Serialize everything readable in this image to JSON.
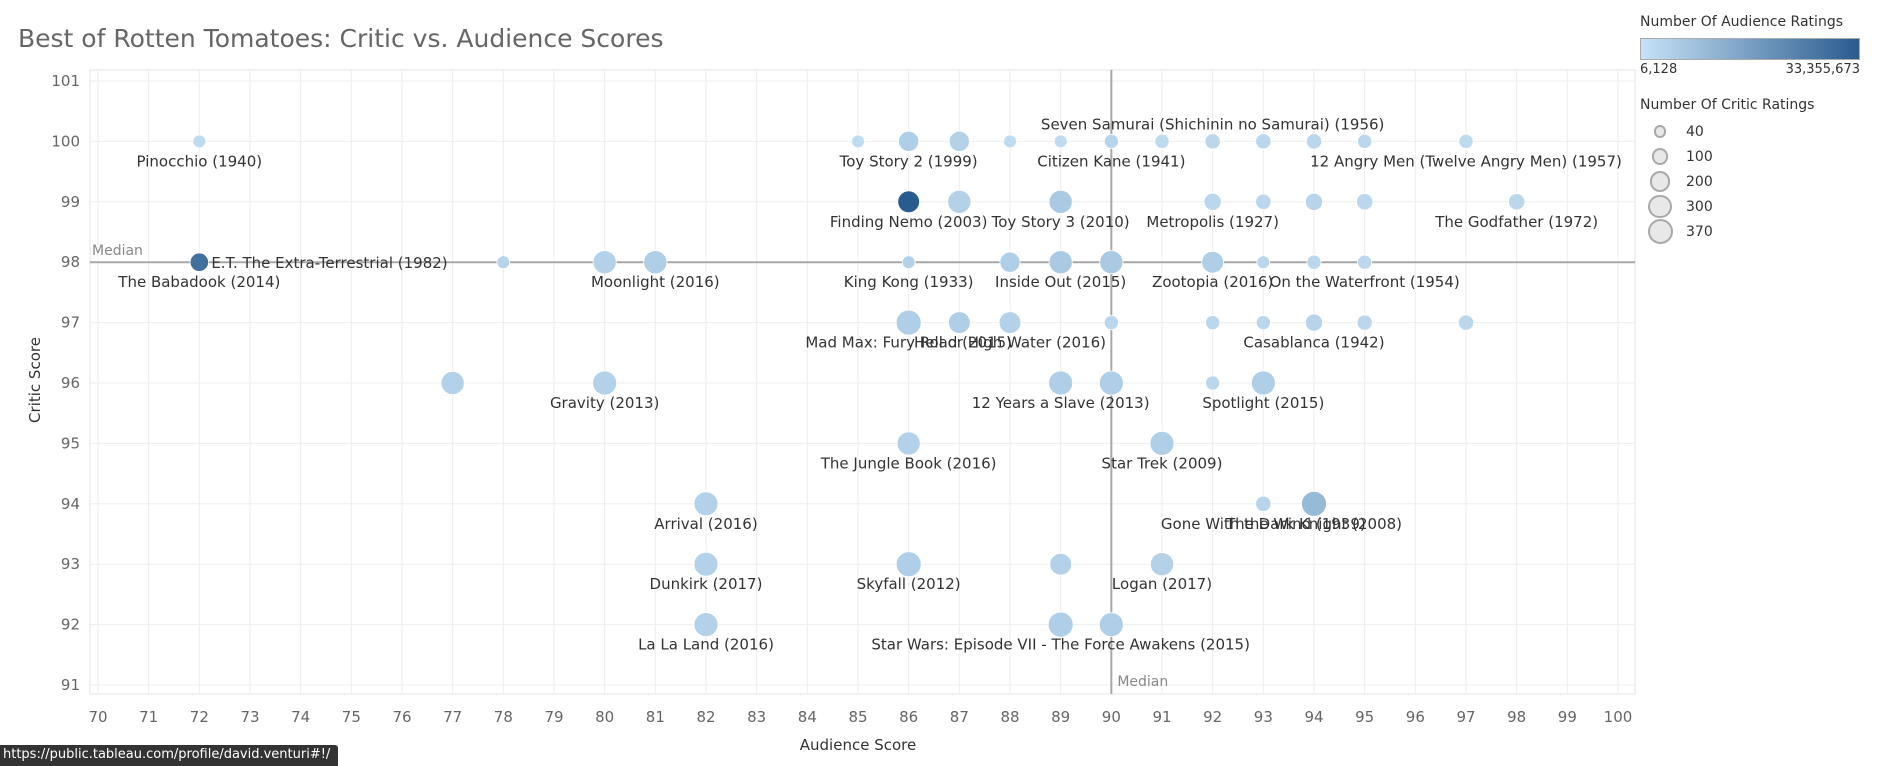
{
  "chart_data": {
    "type": "scatter",
    "title": "Best of Rotten Tomatoes: Critic vs. Audience Scores",
    "xlabel": "Audience Score",
    "ylabel": "Critic Score",
    "xlim": [
      70,
      100
    ],
    "ylim": [
      91,
      101
    ],
    "x_ticks": [
      70,
      71,
      72,
      73,
      74,
      75,
      76,
      77,
      78,
      79,
      80,
      81,
      82,
      83,
      84,
      85,
      86,
      87,
      88,
      89,
      90,
      91,
      92,
      93,
      94,
      95,
      96,
      97,
      98,
      99,
      100
    ],
    "y_ticks": [
      91,
      92,
      93,
      94,
      95,
      96,
      97,
      98,
      99,
      100,
      101
    ],
    "grid": true,
    "reference_lines": [
      {
        "axis": "x",
        "value": 90,
        "label": "Median"
      },
      {
        "axis": "y",
        "value": 98,
        "label": "Median"
      }
    ],
    "color_legend": {
      "title": "Number Of Audience Ratings",
      "min_label": "6,128",
      "max_label": "33,355,673",
      "min_color": "#c6e2f6",
      "max_color": "#2a5b8f"
    },
    "size_legend": {
      "title": "Number Of Critic Ratings",
      "values": [
        "40",
        "100",
        "200",
        "300",
        "370"
      ]
    },
    "points": [
      {
        "x": 72,
        "y": 100,
        "size": 40,
        "color": 0.05,
        "label": "Pinocchio (1940)"
      },
      {
        "x": 85,
        "y": 100,
        "size": 40,
        "color": 0.05,
        "label": ""
      },
      {
        "x": 86,
        "y": 100,
        "size": 200,
        "color": 0.15,
        "label": "Toy Story 2 (1999)"
      },
      {
        "x": 87,
        "y": 100,
        "size": 200,
        "color": 0.12,
        "label": ""
      },
      {
        "x": 88,
        "y": 100,
        "size": 40,
        "color": 0.05,
        "label": ""
      },
      {
        "x": 89,
        "y": 100,
        "size": 40,
        "color": 0.05,
        "label": ""
      },
      {
        "x": 90,
        "y": 100,
        "size": 60,
        "color": 0.1,
        "label": "Citizen Kane (1941)"
      },
      {
        "x": 91,
        "y": 100,
        "size": 60,
        "color": 0.05,
        "label": ""
      },
      {
        "x": 92,
        "y": 100,
        "size": 80,
        "color": 0.08,
        "label": ""
      },
      {
        "x": 93,
        "y": 100,
        "size": 80,
        "color": 0.08,
        "label": ""
      },
      {
        "x": 94,
        "y": 100,
        "size": 80,
        "color": 0.08,
        "label": ""
      },
      {
        "x": 95,
        "y": 100,
        "size": 60,
        "color": 0.08,
        "label": ""
      },
      {
        "x": 97,
        "y": 100,
        "size": 60,
        "color": 0.05,
        "label": ""
      },
      {
        "x": 86,
        "y": 99,
        "size": 250,
        "color": 1.0,
        "label": "Finding Nemo (2003)"
      },
      {
        "x": 87,
        "y": 99,
        "size": 300,
        "color": 0.12,
        "label": ""
      },
      {
        "x": 89,
        "y": 99,
        "size": 300,
        "color": 0.18,
        "label": "Toy Story 3 (2010)"
      },
      {
        "x": 92,
        "y": 99,
        "size": 120,
        "color": 0.08,
        "label": "Metropolis (1927)"
      },
      {
        "x": 93,
        "y": 99,
        "size": 80,
        "color": 0.08,
        "label": ""
      },
      {
        "x": 94,
        "y": 99,
        "size": 120,
        "color": 0.1,
        "label": ""
      },
      {
        "x": 95,
        "y": 99,
        "size": 100,
        "color": 0.08,
        "label": ""
      },
      {
        "x": 98,
        "y": 99,
        "size": 100,
        "color": 0.08,
        "label": "The Godfather (1972)"
      },
      {
        "x": 72,
        "y": 98,
        "size": 150,
        "color": 0.85,
        "label": "The Babadook (2014)"
      },
      {
        "x": 78,
        "y": 98,
        "size": 40,
        "color": 0.1,
        "label": ""
      },
      {
        "x": 80,
        "y": 98,
        "size": 300,
        "color": 0.12,
        "label": ""
      },
      {
        "x": 81,
        "y": 98,
        "size": 300,
        "color": 0.15,
        "label": "Moonlight (2016)"
      },
      {
        "x": 86,
        "y": 98,
        "size": 40,
        "color": 0.12,
        "label": "King Kong (1933)"
      },
      {
        "x": 88,
        "y": 98,
        "size": 200,
        "color": 0.15,
        "label": ""
      },
      {
        "x": 89,
        "y": 98,
        "size": 300,
        "color": 0.18,
        "label": "Inside Out (2015)"
      },
      {
        "x": 90,
        "y": 98,
        "size": 300,
        "color": 0.18,
        "label": ""
      },
      {
        "x": 92,
        "y": 98,
        "size": 250,
        "color": 0.15,
        "label": "Zootopia (2016)"
      },
      {
        "x": 93,
        "y": 98,
        "size": 40,
        "color": 0.08,
        "label": ""
      },
      {
        "x": 94,
        "y": 98,
        "size": 60,
        "color": 0.08,
        "label": ""
      },
      {
        "x": 95,
        "y": 98,
        "size": 60,
        "color": 0.08,
        "label": "On the Waterfront (1954)"
      },
      {
        "x": 86,
        "y": 97,
        "size": 370,
        "color": 0.15,
        "label": "Mad Max: Fury Road (2015)"
      },
      {
        "x": 87,
        "y": 97,
        "size": 250,
        "color": 0.15,
        "label": ""
      },
      {
        "x": 88,
        "y": 97,
        "size": 250,
        "color": 0.12,
        "label": "Hell or High Water (2016)"
      },
      {
        "x": 90,
        "y": 97,
        "size": 60,
        "color": 0.08,
        "label": ""
      },
      {
        "x": 92,
        "y": 97,
        "size": 60,
        "color": 0.08,
        "label": ""
      },
      {
        "x": 93,
        "y": 97,
        "size": 60,
        "color": 0.08,
        "label": ""
      },
      {
        "x": 94,
        "y": 97,
        "size": 120,
        "color": 0.1,
        "label": "Casablanca (1942)"
      },
      {
        "x": 95,
        "y": 97,
        "size": 80,
        "color": 0.08,
        "label": ""
      },
      {
        "x": 97,
        "y": 97,
        "size": 80,
        "color": 0.08,
        "label": ""
      },
      {
        "x": 77,
        "y": 96,
        "size": 300,
        "color": 0.12,
        "label": ""
      },
      {
        "x": 80,
        "y": 96,
        "size": 330,
        "color": 0.12,
        "label": "Gravity (2013)"
      },
      {
        "x": 89,
        "y": 96,
        "size": 330,
        "color": 0.15,
        "label": "12 Years a Slave (2013)"
      },
      {
        "x": 90,
        "y": 96,
        "size": 330,
        "color": 0.15,
        "label": ""
      },
      {
        "x": 92,
        "y": 96,
        "size": 60,
        "color": 0.08,
        "label": ""
      },
      {
        "x": 93,
        "y": 96,
        "size": 330,
        "color": 0.15,
        "label": "Spotlight (2015)"
      },
      {
        "x": 86,
        "y": 95,
        "size": 300,
        "color": 0.12,
        "label": "The Jungle Book (2016)"
      },
      {
        "x": 91,
        "y": 95,
        "size": 330,
        "color": 0.15,
        "label": "Star Trek (2009)"
      },
      {
        "x": 82,
        "y": 94,
        "size": 330,
        "color": 0.12,
        "label": "Arrival (2016)"
      },
      {
        "x": 93,
        "y": 94,
        "size": 80,
        "color": 0.1,
        "label": "Gone With the Wind (1939)"
      },
      {
        "x": 94,
        "y": 94,
        "size": 370,
        "color": 0.3,
        "label": "The Dark Knight (2008)"
      },
      {
        "x": 82,
        "y": 93,
        "size": 330,
        "color": 0.12,
        "label": "Dunkirk (2017)"
      },
      {
        "x": 86,
        "y": 93,
        "size": 370,
        "color": 0.15,
        "label": "Skyfall (2012)"
      },
      {
        "x": 89,
        "y": 93,
        "size": 250,
        "color": 0.12,
        "label": ""
      },
      {
        "x": 91,
        "y": 93,
        "size": 300,
        "color": 0.12,
        "label": "Logan (2017)"
      },
      {
        "x": 82,
        "y": 92,
        "size": 330,
        "color": 0.12,
        "label": "La La Land (2016)"
      },
      {
        "x": 89,
        "y": 92,
        "size": 370,
        "color": 0.15,
        "label": "Star Wars: Episode VII - The Force Awakens (2015)"
      },
      {
        "x": 90,
        "y": 92,
        "size": 330,
        "color": 0.15,
        "label": ""
      }
    ],
    "extra_labels": [
      {
        "text": "E.T. The Extra-Terrestrial (1982)",
        "anchor_x": 72,
        "anchor_y": 98
      },
      {
        "text": "Seven Samurai (Shichinin no Samurai) (1956)",
        "anchor_x": 92,
        "anchor_y": 100
      },
      {
        "text": "12 Angry Men (Twelve Angry Men) (1957)",
        "anchor_x": 97,
        "anchor_y": 100
      }
    ]
  },
  "status_bar": {
    "url": "https://public.tableau.com/profile/david.venturi#!/"
  }
}
